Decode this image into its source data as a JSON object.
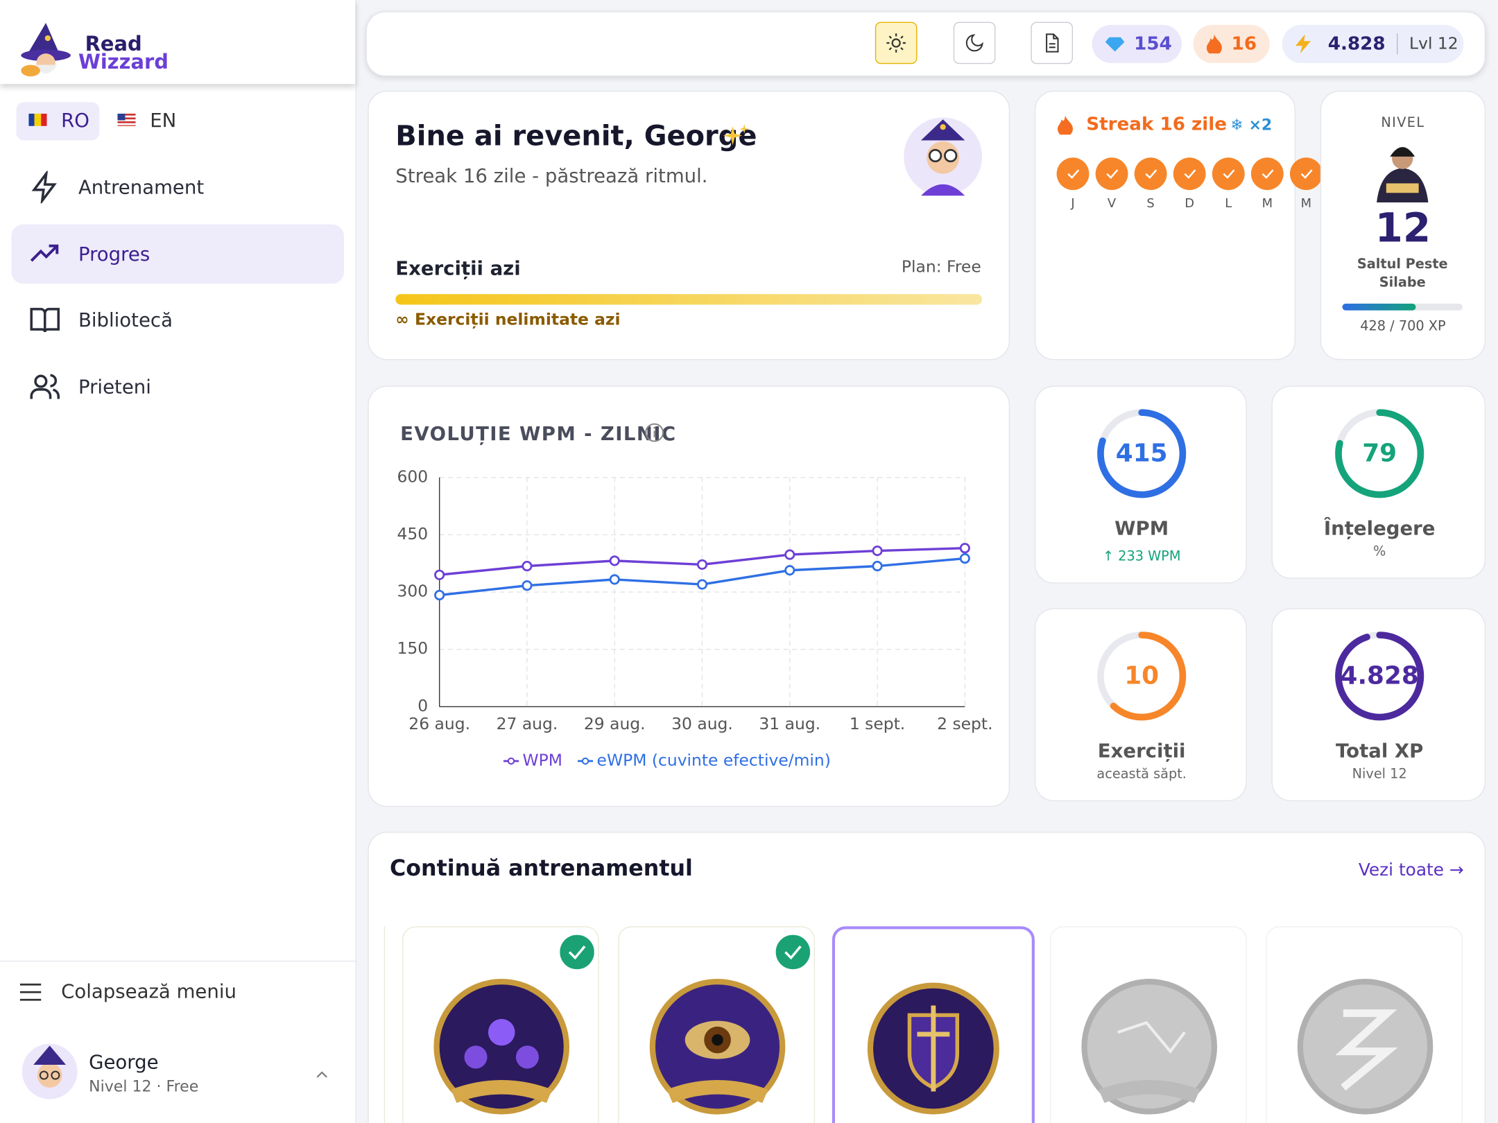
{
  "sidebar": {
    "logo": [
      "Read",
      "Wizzard"
    ],
    "languages": [
      "RO",
      "EN"
    ],
    "nav": [
      "Antrenament",
      "Progres",
      "Bibliotecă",
      "Prieteni"
    ],
    "collapse": "Colapsează meniu",
    "user": {
      "name": "George",
      "info": "Nivel 12 · Free"
    }
  },
  "topbar": {
    "gems": 154,
    "fire": 16,
    "xp": "4.828",
    "level": "Lvl 12"
  },
  "welcome": {
    "title": "Bine ai revenit, George",
    "subtitle": "Streak 16 zile - păstrează ritmul.",
    "exercises_label": "Exerciții azi",
    "plan": "Plan: Free",
    "unlimited": "Exerciții nelimitate azi"
  },
  "streak": {
    "title": "Streak 16 zile",
    "freeze": "×2",
    "days": [
      "J",
      "V",
      "S",
      "D",
      "L",
      "M",
      "M"
    ]
  },
  "level": {
    "label": "NIVEL",
    "value": 12,
    "name": "Saltul Peste Silabe",
    "xp": 428,
    "xp_separator": "/",
    "xp_max": 700,
    "xp_unit": "XP"
  },
  "stats": [
    {
      "value": 415,
      "label": "WPM",
      "note": "↑ 233 WPM",
      "color": "#2f6fe4",
      "ring": 0.8
    },
    {
      "value": 79,
      "label": "Înțelegere",
      "note": "%",
      "color": "#14a37a",
      "ring": 0.79
    },
    {
      "value": 10,
      "label": "Exerciții",
      "note": "această săpt.",
      "color": "#f7862a",
      "ring": 0.62
    },
    {
      "value": "4.828",
      "label": "Total XP",
      "note": "Nivel 12",
      "color": "#4c2a9e",
      "ring": 0.95
    }
  ],
  "chart_data": {
    "type": "line",
    "title": "EVOLUȚIE WPM - ZILNIC",
    "categories": [
      "26 aug.",
      "27 aug.",
      "29 aug.",
      "30 aug.",
      "31 aug.",
      "1 sept.",
      "2 sept."
    ],
    "series": [
      {
        "name": "WPM",
        "color": "#6d3fd6",
        "values": [
          345,
          368,
          382,
          372,
          398,
          408,
          415
        ]
      },
      {
        "name": "eWPM (cuvinte efective/min)",
        "color": "#2f6fe4",
        "values": [
          292,
          317,
          333,
          320,
          357,
          368,
          388
        ]
      }
    ],
    "ylim": [
      0,
      600
    ],
    "yticks": [
      0,
      150,
      300,
      450,
      600
    ],
    "grid": true
  },
  "continue": {
    "title": "Continuă antrenamentul",
    "link": "Vezi toate →"
  }
}
